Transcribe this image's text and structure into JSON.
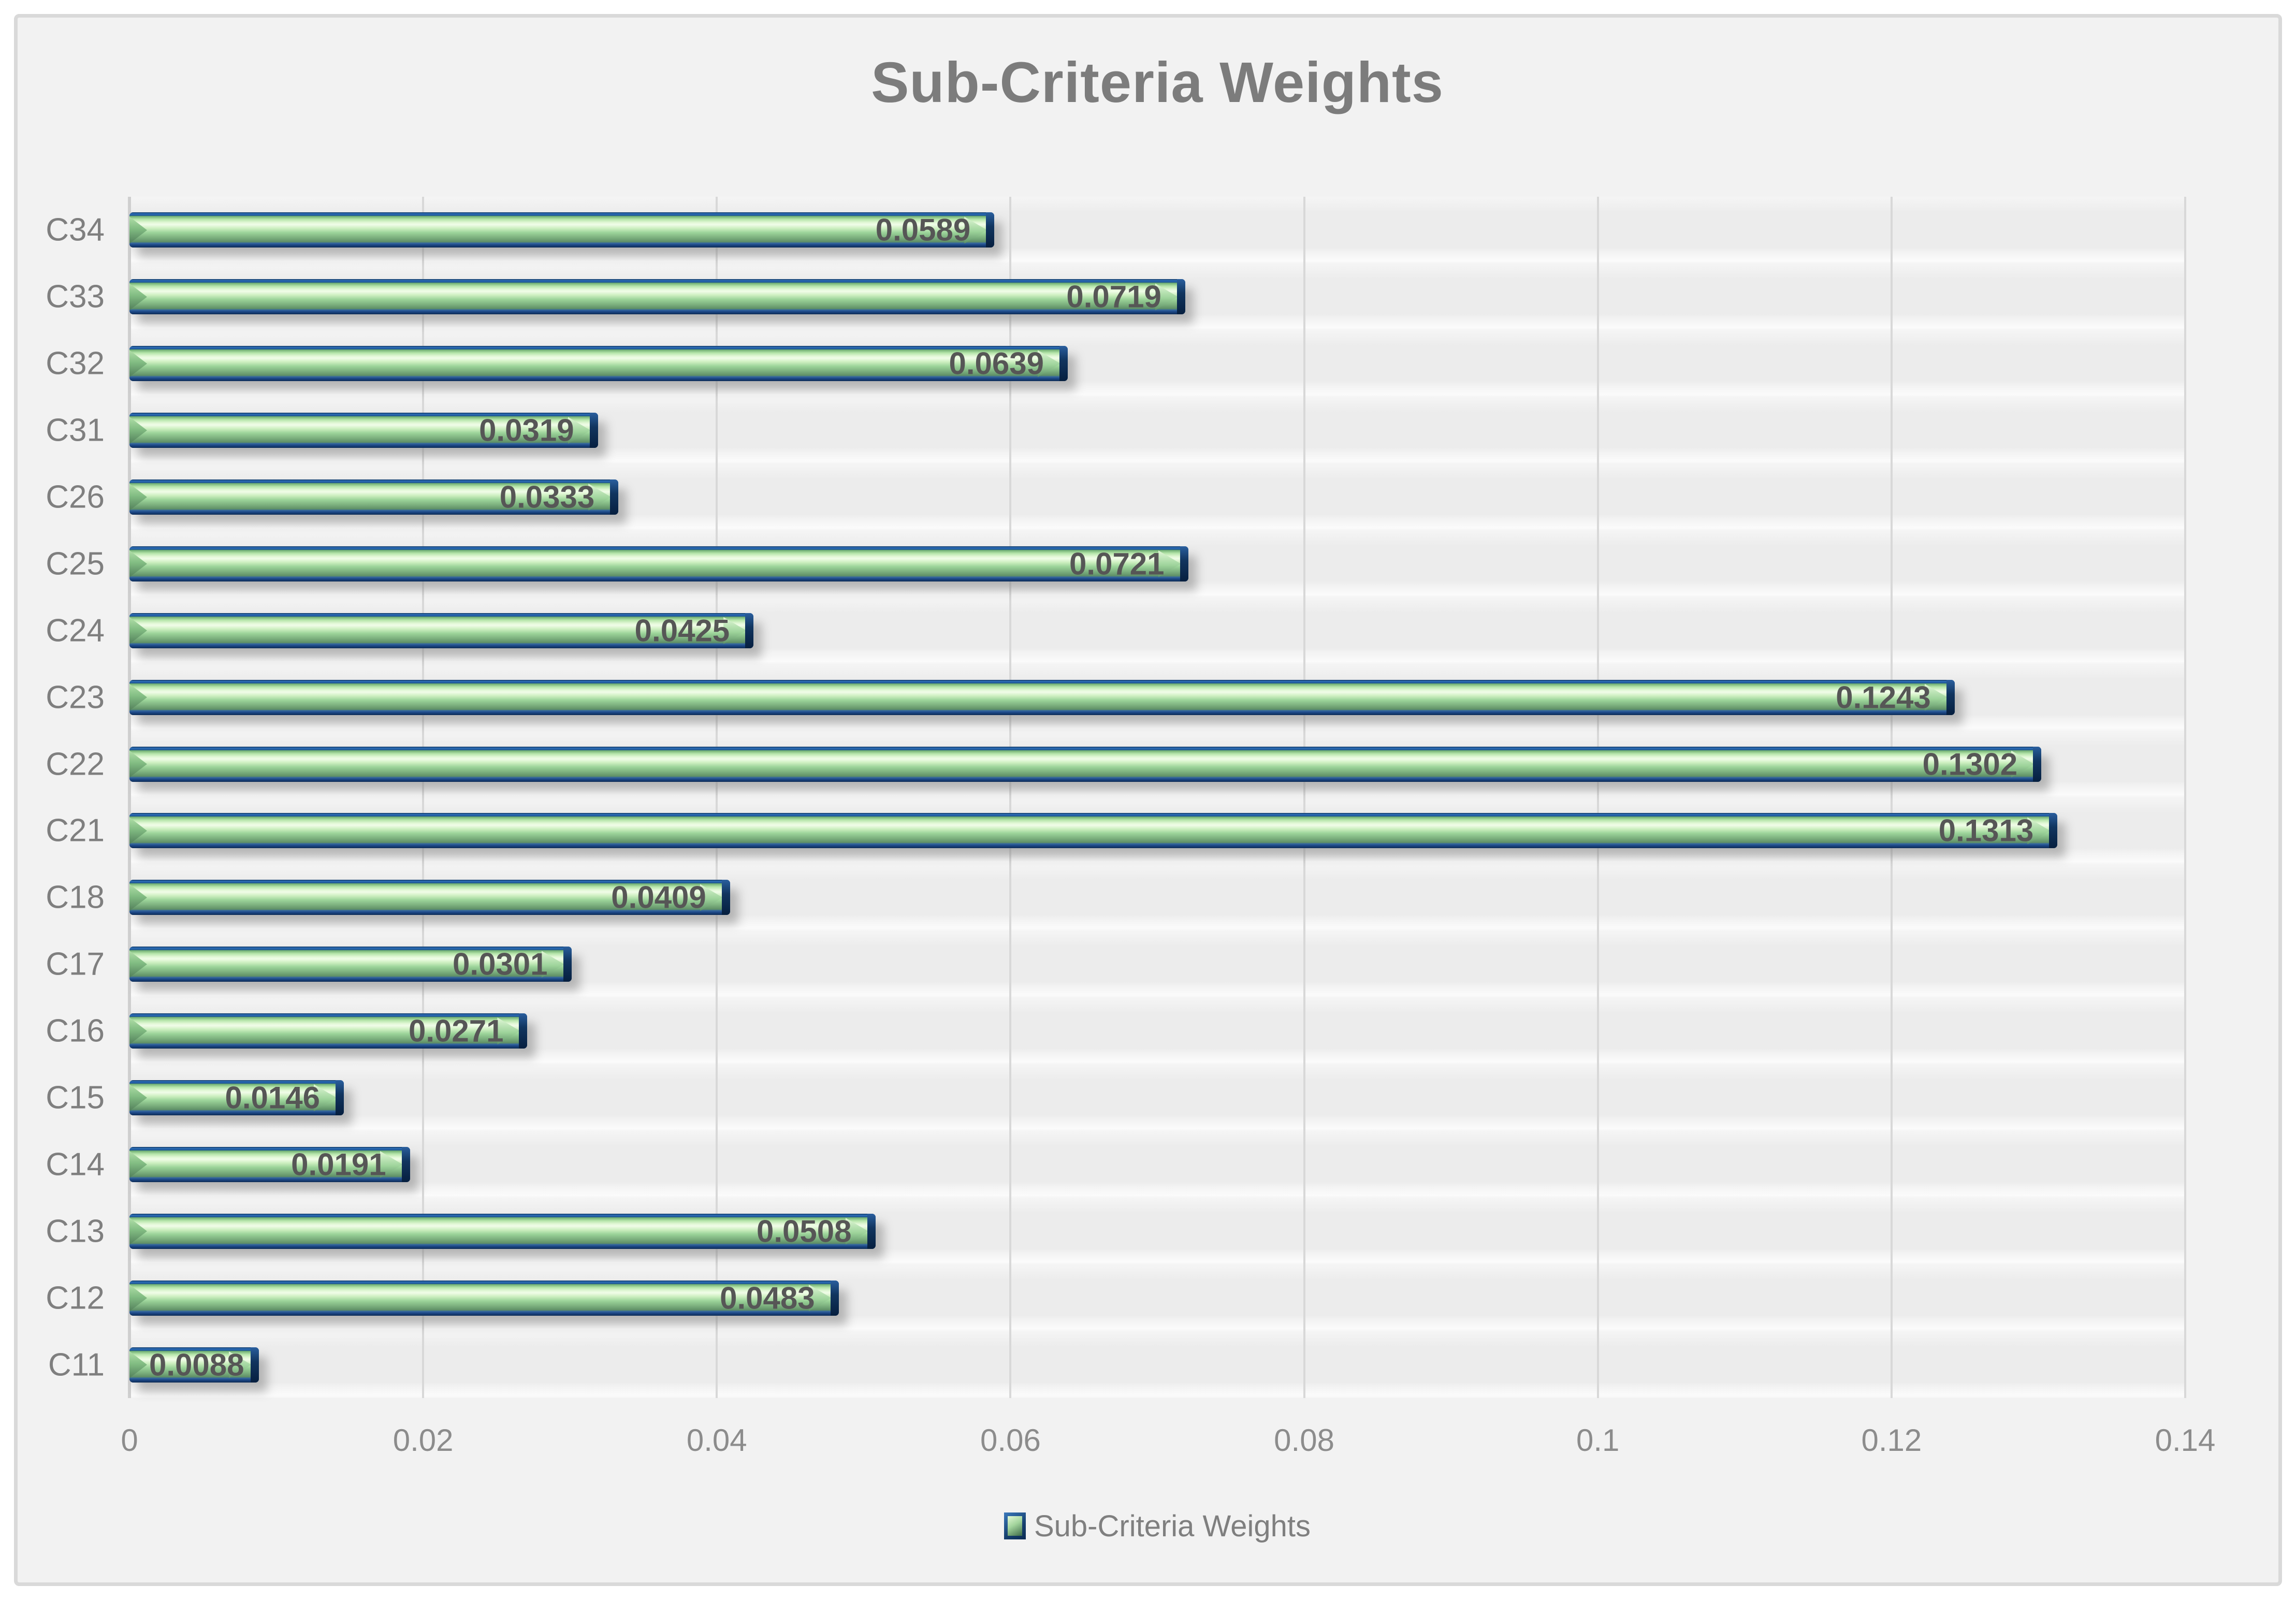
{
  "chart_data": {
    "type": "bar",
    "orientation": "horizontal",
    "title": "Sub-Criteria Weights",
    "categories": [
      "C34",
      "C33",
      "C32",
      "C31",
      "C26",
      "C25",
      "C24",
      "C23",
      "C22",
      "C21",
      "C18",
      "C17",
      "C16",
      "C15",
      "C14",
      "C13",
      "C12",
      "C11"
    ],
    "values": [
      0.0589,
      0.0719,
      0.0639,
      0.0319,
      0.0333,
      0.0721,
      0.0425,
      0.1243,
      0.1302,
      0.1313,
      0.0409,
      0.0301,
      0.0271,
      0.0146,
      0.0191,
      0.0508,
      0.0483,
      0.0088
    ],
    "data_labels": [
      "0.0589",
      "0.0719",
      "0.0639",
      "0.0319",
      "0.0333",
      "0.0721",
      "0.0425",
      "0.1243",
      "0.1302",
      "0.1313",
      "0.0409",
      "0.0301",
      "0.0271",
      "0.0146",
      "0.0191",
      "0.0508",
      "0.0483",
      "0.0088"
    ],
    "xlabel": "",
    "ylabel": "",
    "xlim": [
      0,
      0.14
    ],
    "x_tick_values": [
      0,
      0.02,
      0.04,
      0.06,
      0.08,
      0.1,
      0.12,
      0.14
    ],
    "x_tick_labels": [
      "0",
      "0.02",
      "0.04",
      "0.06",
      "0.08",
      "0.1",
      "0.12",
      "0.14"
    ],
    "grid": true,
    "legend_position": "bottom",
    "legend_entries": [
      "Sub-Criteria Weights"
    ]
  },
  "legend": {
    "label": "Sub-Criteria Weights"
  },
  "colors": {
    "frame_background": "#f2f2f2",
    "frame_border": "#d9d9d9",
    "gridline": "#d8d8d8",
    "title_text": "#7c7c7c",
    "category_text": "#7f7f7f",
    "value_text": "#565656",
    "axis_text": "#8c8c8c",
    "legend_text": "#7f7f7f",
    "bar_highlight_green": "#eefbe6",
    "bar_mid_green": "#9bd399",
    "bar_dark_green": "#5f8f66",
    "bar_edge_blue_top": "#2f71ba",
    "bar_edge_blue_bottom": "#1b4684",
    "bar_cap_navy": "#0d2c55"
  }
}
